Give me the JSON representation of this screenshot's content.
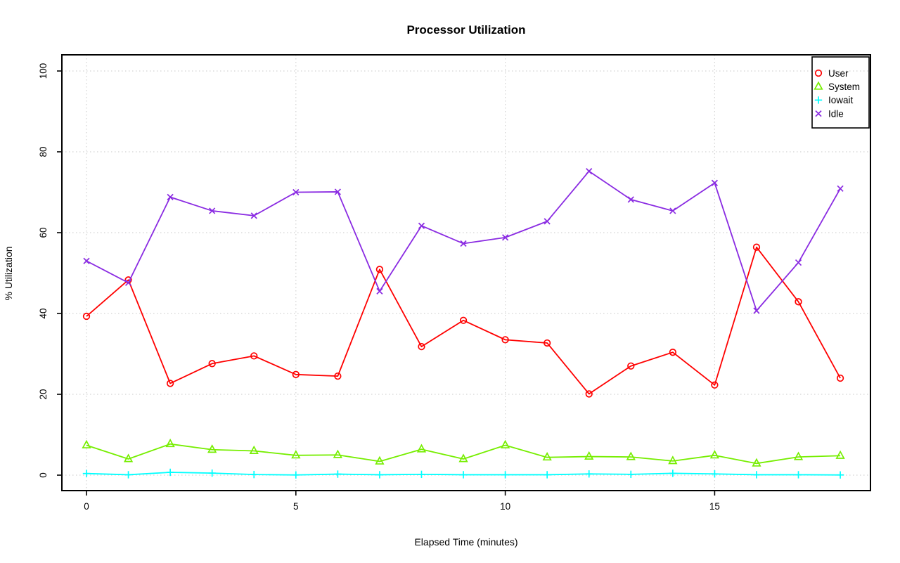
{
  "title": "Processor Utilization",
  "colors": {
    "user": "#FF0000",
    "system": "#76EE00",
    "iowait": "#00FFFF",
    "idle": "#8A2BE2",
    "grid": "#D3D3D3",
    "axis": "#000000",
    "background": "#FFFFFF"
  },
  "legend": {
    "position": "top-right",
    "items": [
      {
        "label": "User",
        "marker": "circle-icon",
        "color": "#FF0000"
      },
      {
        "label": "System",
        "marker": "triangle-icon",
        "color": "#76EE00"
      },
      {
        "label": "Iowait",
        "marker": "plus-icon",
        "color": "#00FFFF"
      },
      {
        "label": "Idle",
        "marker": "x-icon",
        "color": "#8A2BE2"
      }
    ]
  },
  "chart_data": {
    "type": "line",
    "title": "Processor Utilization",
    "xlabel": "Elapsed Time (minutes)",
    "ylabel": "% Utilization",
    "xlim": [
      0,
      18
    ],
    "ylim": [
      0,
      100
    ],
    "x_ticks": [
      0,
      5,
      10,
      15
    ],
    "y_ticks": [
      0,
      20,
      40,
      60,
      80,
      100
    ],
    "grid": "dotted lightgray at axis ticks, horizontal and vertical",
    "legend_position": "top-right",
    "x": [
      0,
      1,
      2,
      3,
      4,
      5,
      6,
      7,
      8,
      9,
      10,
      11,
      12,
      13,
      14,
      15,
      16,
      17,
      18
    ],
    "series": [
      {
        "name": "User",
        "marker": "circle",
        "color": "#FF0000",
        "values": [
          39.3,
          48.3,
          22.7,
          27.6,
          29.5,
          24.9,
          24.5,
          50.9,
          31.8,
          38.3,
          33.5,
          32.7,
          20.1,
          27.0,
          30.4,
          22.3,
          56.4,
          42.9,
          24.0
        ]
      },
      {
        "name": "System",
        "marker": "triangle-up",
        "color": "#76EE00",
        "values": [
          7.4,
          4.0,
          7.7,
          6.3,
          6.0,
          4.9,
          5.0,
          3.4,
          6.4,
          4.0,
          7.4,
          4.4,
          4.6,
          4.5,
          3.5,
          4.9,
          2.9,
          4.5,
          4.8
        ]
      },
      {
        "name": "Iowait",
        "marker": "plus",
        "color": "#00FFFF",
        "values": [
          0.4,
          0.1,
          0.7,
          0.5,
          0.15,
          0.05,
          0.25,
          0.1,
          0.2,
          0.1,
          0.1,
          0.1,
          0.3,
          0.2,
          0.45,
          0.3,
          0.1,
          0.1,
          0.05
        ]
      },
      {
        "name": "Idle",
        "marker": "x",
        "color": "#8A2BE2",
        "values": [
          53.0,
          47.6,
          68.8,
          65.4,
          64.2,
          70.0,
          70.1,
          45.5,
          61.7,
          57.3,
          58.8,
          62.8,
          75.2,
          68.2,
          65.4,
          72.3,
          40.7,
          52.6,
          70.9
        ]
      }
    ]
  }
}
